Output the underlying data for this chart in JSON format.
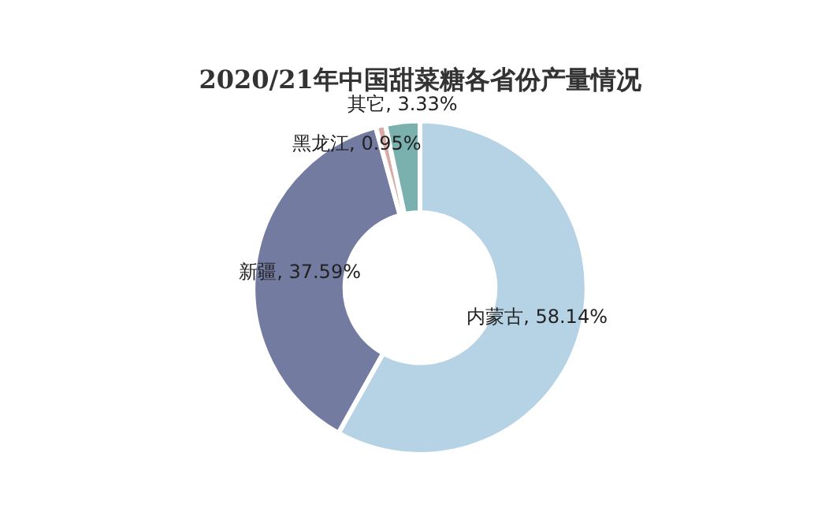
{
  "chart_data": {
    "type": "donut",
    "title": "2020/21年中国甜菜糖各省份产量情况",
    "categories": [
      "内蒙古",
      "新疆",
      "黑龙江",
      "其它"
    ],
    "values": [
      58.14,
      37.59,
      0.95,
      3.33
    ],
    "colors": [
      "#b5d3e4",
      "#737ba0",
      "#d9a9a6",
      "#7ab0ae"
    ],
    "value_labels": [
      ", 58.14%",
      ", 37.59%",
      ", 0.95%",
      ", 3.33%"
    ],
    "legend": false
  }
}
